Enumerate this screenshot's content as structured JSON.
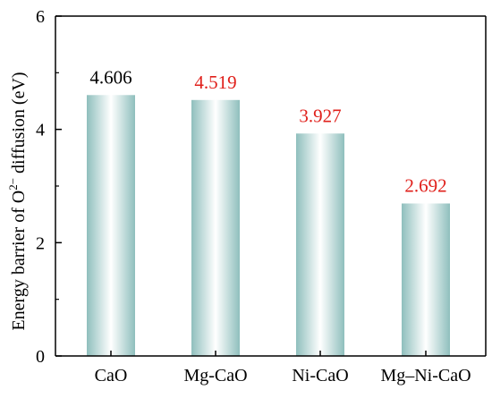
{
  "chart_data": {
    "type": "bar",
    "title": "",
    "xlabel": "",
    "ylabel": "Energy barrier of O2− diffusion (eV)",
    "ylabel_parts": {
      "before": "Energy barrier of O",
      "sup": "2−",
      "after": " diffusion (eV)"
    },
    "categories": [
      "CaO",
      "Mg-CaO",
      "Ni-CaO",
      "Mg–Ni-CaO"
    ],
    "values": [
      4.606,
      4.519,
      3.927,
      2.692
    ],
    "value_labels": [
      "4.606",
      "4.519",
      "3.927",
      "2.692"
    ],
    "label_colors": [
      "#000000",
      "#e0201b",
      "#e0201b",
      "#e0201b"
    ],
    "ylim": [
      0,
      6
    ],
    "yticks": [
      0,
      2,
      4,
      6
    ],
    "ytick_labels": [
      "0",
      "2",
      "4",
      "6"
    ],
    "grid": false,
    "colors": {
      "bar_edge": "#8fbfbd",
      "bar_center": "#ffffff",
      "axis": "#000000"
    }
  }
}
